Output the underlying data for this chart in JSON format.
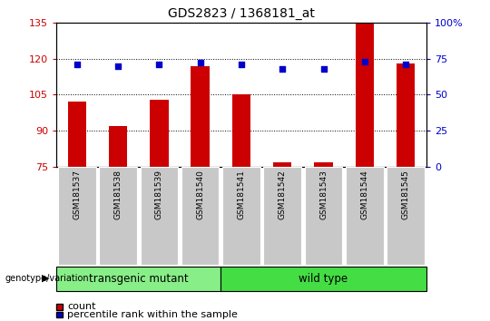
{
  "title": "GDS2823 / 1368181_at",
  "samples": [
    "GSM181537",
    "GSM181538",
    "GSM181539",
    "GSM181540",
    "GSM181541",
    "GSM181542",
    "GSM181543",
    "GSM181544",
    "GSM181545"
  ],
  "count_values": [
    102,
    92,
    103,
    117,
    105,
    77,
    77,
    135,
    118
  ],
  "percentile_values": [
    71,
    70,
    71,
    72,
    71,
    68,
    68,
    73,
    71
  ],
  "ylim_left": [
    75,
    135
  ],
  "ylim_right": [
    0,
    100
  ],
  "yticks_left": [
    75,
    90,
    105,
    120,
    135
  ],
  "yticks_right": [
    0,
    25,
    50,
    75,
    100
  ],
  "bar_color": "#cc0000",
  "scatter_color": "#0000cc",
  "bar_width": 0.45,
  "group0_label": "transgenic mutant",
  "group0_indices": [
    0,
    1,
    2,
    3
  ],
  "group0_color": "#88ee88",
  "group1_label": "wild type",
  "group1_indices": [
    4,
    5,
    6,
    7,
    8
  ],
  "group1_color": "#44dd44",
  "group_label_text": "genotype/variation",
  "legend_count": "count",
  "legend_percentile": "percentile rank within the sample",
  "tick_color_left": "#cc0000",
  "tick_color_right": "#0000cc",
  "xticklabel_bg": "#c8c8c8",
  "plot_bg_color": "#ffffff"
}
